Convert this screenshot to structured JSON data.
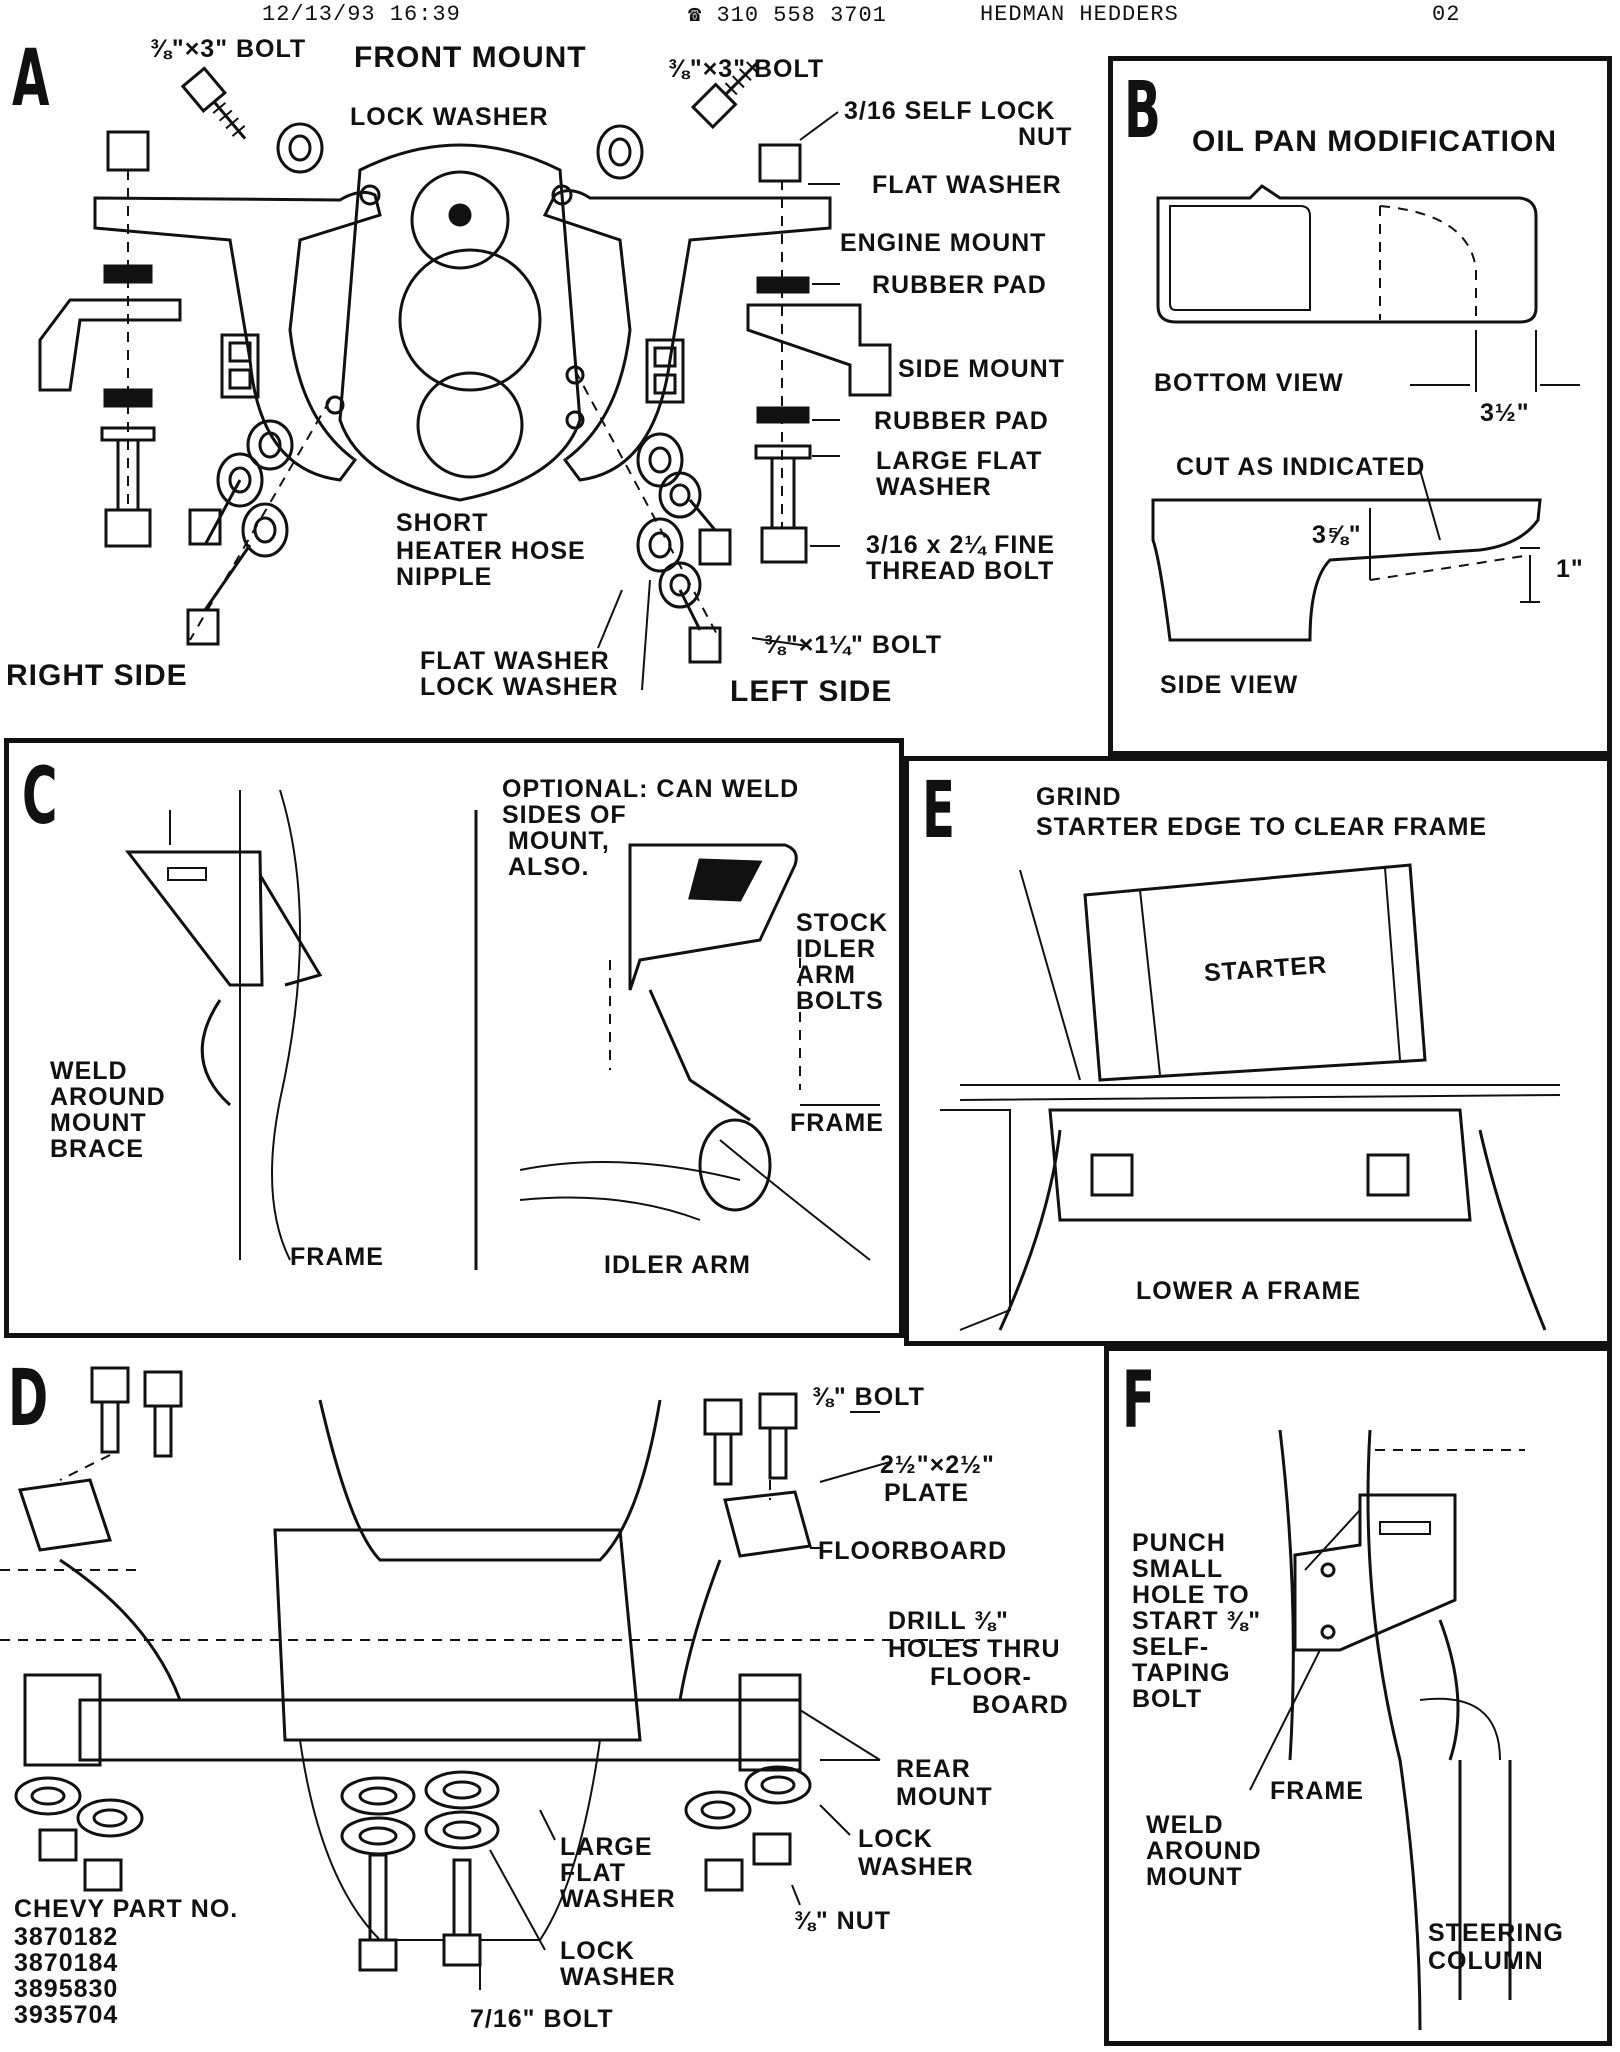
{
  "fax_header": {
    "datetime": "12/13/93 16:39",
    "phone": "☎ 310 558 3701",
    "company": "HEDMAN HEDDERS",
    "page": "02"
  },
  "panel_a": {
    "letter": "A",
    "title": "FRONT MOUNT",
    "bolt_left": "⅜\"×3\" BOLT",
    "bolt_right": "⅜\"×3\" BOLT",
    "lock_washer": "LOCK  WASHER",
    "self_lock_nut_1": "3/16 SELF LOCK",
    "self_lock_nut_2": "NUT",
    "flat_washer": "FLAT  WASHER",
    "engine_mount": "ENGINE  MOUNT",
    "rubber_pad_1": "RUBBER  PAD",
    "side_mount": "SIDE  MOUNT",
    "rubber_pad_2": "RUBBER  PAD",
    "large_flat_washer_1": "LARGE  FLAT",
    "large_flat_washer_2": "WASHER",
    "fine_bolt_1": "3/16 x 2¼ FINE",
    "fine_bolt_2": "THREAD BOLT",
    "hose_nipple_1": "SHORT",
    "hose_nipple_2": "HEATER HOSE",
    "hose_nipple_3": "NIPPLE",
    "bolt_small": "⅜\"×1¼\" BOLT",
    "flat_washer_2": "FLAT WASHER",
    "lock_washer_2": "LOCK WASHER",
    "right_side": "RIGHT SIDE",
    "left_side": "LEFT SIDE"
  },
  "panel_b": {
    "letter": "B",
    "title": "OIL PAN MODIFICATION",
    "bottom_view": "BOTTOM VIEW",
    "dim_width": "3½\"",
    "cut_as_indicated": "CUT AS INDICATED",
    "dim_depth": "3⅝\"",
    "dim_one": "1\"",
    "side_view": "SIDE VIEW"
  },
  "panel_c": {
    "letter": "C",
    "optional_1": "OPTIONAL:  CAN  WELD",
    "optional_2": "SIDES  OF",
    "optional_3": "MOUNT,",
    "optional_4": "ALSO.",
    "stock_1": "STOCK",
    "stock_2": "IDLER",
    "stock_3": "ARM",
    "stock_4": "BOLTS",
    "weld_1": "WELD",
    "weld_2": "AROUND",
    "weld_3": "MOUNT",
    "weld_4": "BRACE",
    "frame_right": "FRAME",
    "frame_left": "FRAME",
    "idler_arm": "IDLER ARM"
  },
  "panel_e": {
    "letter": "E",
    "grind_1": "GRIND",
    "grind_2": "STARTER EDGE TO CLEAR FRAME",
    "starter": "STARTER",
    "lower_a_frame": "LOWER A FRAME"
  },
  "panel_d": {
    "letter": "D",
    "bolt": "⅜\" BOLT",
    "plate_1": "2½\"×2½\"",
    "plate_2": "PLATE",
    "floorboard": "FLOORBOARD",
    "drill_1": "DRILL ⅜\"",
    "drill_2": "HOLES THRU",
    "drill_3": "FLOOR-",
    "drill_4": "BOARD",
    "rear_mount_1": "REAR",
    "rear_mount_2": "MOUNT",
    "lock_washer_r_1": "LOCK",
    "lock_washer_r_2": "WASHER",
    "nut": "⅜\" NUT",
    "large_flat_1": "LARGE",
    "large_flat_2": "FLAT",
    "large_flat_3": "WASHER",
    "lock_washer_c_1": "LOCK",
    "lock_washer_c_2": "WASHER",
    "bolt_716": "7/16\" BOLT",
    "chevy_title": "CHEVY PART NO.",
    "part_numbers": [
      "3870182",
      "3870184",
      "3895830",
      "3935704"
    ]
  },
  "panel_f": {
    "letter": "F",
    "punch_1": "PUNCH",
    "punch_2": "SMALL",
    "punch_3": "HOLE TO",
    "punch_4": "START ⅜\"",
    "punch_5": "SELF-",
    "punch_6": "TAPING",
    "punch_7": "BOLT",
    "frame": "FRAME",
    "weld_1": "WELD",
    "weld_2": "AROUND",
    "weld_3": "MOUNT",
    "steering_1": "STEERING",
    "steering_2": "COLUMN"
  }
}
